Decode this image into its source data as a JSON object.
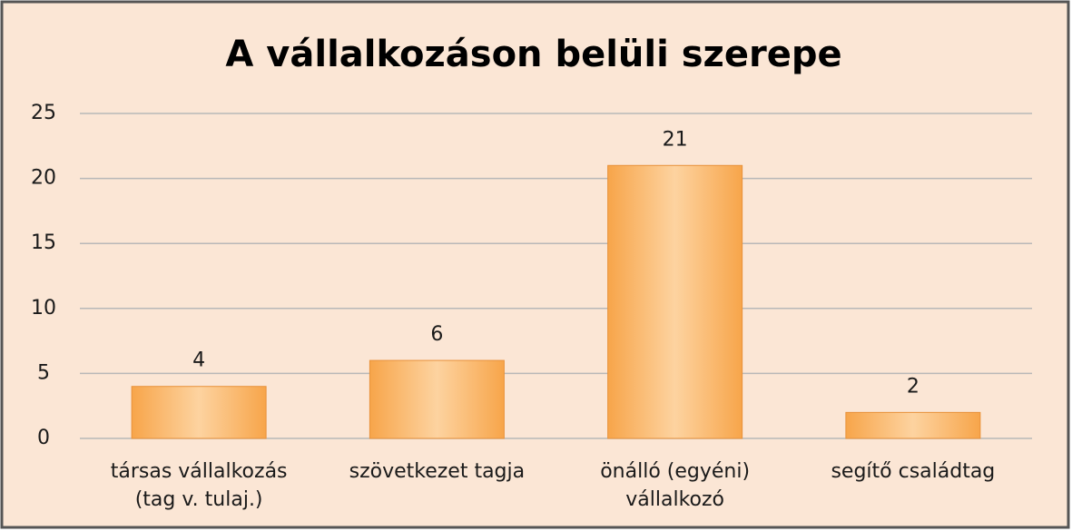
{
  "chart_data": {
    "type": "bar",
    "title": "A vállalkozáson belüli szerepe",
    "categories": [
      [
        "társas vállalkozás",
        "(tag v. tulaj.)"
      ],
      [
        "szövetkezet tagja"
      ],
      [
        "önálló (egyéni)",
        "vállalkozó"
      ],
      [
        "segítő családtag"
      ]
    ],
    "values": [
      4,
      6,
      21,
      2
    ],
    "color": "#f7a54a",
    "ylim": [
      0,
      25
    ],
    "yticks": [
      0,
      5,
      10,
      15,
      20,
      25
    ],
    "grid": true
  }
}
